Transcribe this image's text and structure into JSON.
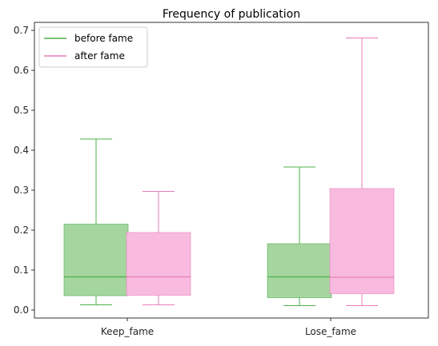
{
  "chart_data": {
    "type": "box",
    "title": "Frequency of publication",
    "xlabel": "",
    "ylabel": "",
    "ylim": [
      -0.02,
      0.72
    ],
    "yticks": [
      0.0,
      0.1,
      0.2,
      0.3,
      0.4,
      0.5,
      0.6,
      0.7
    ],
    "ytick_labels": [
      "0.0",
      "0.1",
      "0.2",
      "0.3",
      "0.4",
      "0.5",
      "0.6",
      "0.7"
    ],
    "categories": [
      "Keep_fame",
      "Lose_fame"
    ],
    "legend_position": "top-left",
    "grid": false,
    "series": [
      {
        "name": "before fame",
        "line_color": "#4daf4a",
        "fill_color": "#a6d6a0",
        "boxes": [
          {
            "whisker_low": 0.013,
            "q1": 0.036,
            "median": 0.083,
            "q3": 0.215,
            "whisker_high": 0.428
          },
          {
            "whisker_low": 0.011,
            "q1": 0.031,
            "median": 0.083,
            "q3": 0.166,
            "whisker_high": 0.358
          }
        ]
      },
      {
        "name": "after fame",
        "line_color": "#e77fb8",
        "fill_color": "#f8bbdf",
        "boxes": [
          {
            "whisker_low": 0.013,
            "q1": 0.037,
            "median": 0.083,
            "q3": 0.194,
            "whisker_high": 0.297
          },
          {
            "whisker_low": 0.011,
            "q1": 0.041,
            "median": 0.082,
            "q3": 0.304,
            "whisker_high": 0.681
          }
        ]
      }
    ]
  }
}
